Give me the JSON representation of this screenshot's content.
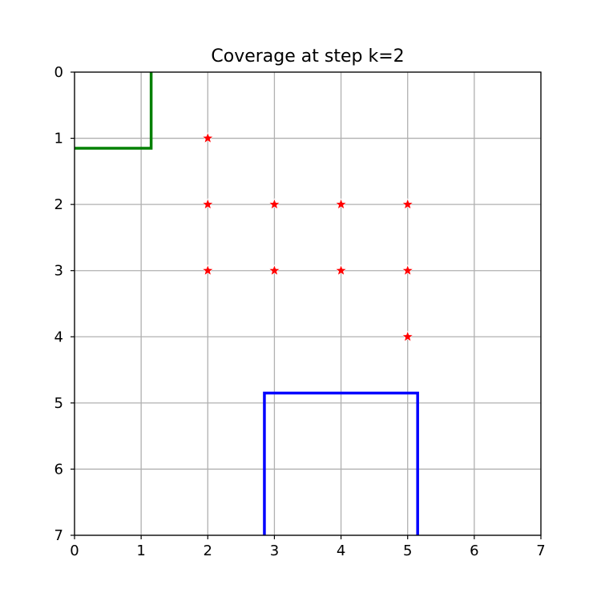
{
  "chart_data": {
    "type": "scatter",
    "title": "Coverage at step k=2",
    "xlabel": "",
    "ylabel": "",
    "xlim": [
      0,
      7
    ],
    "ylim": [
      7,
      0
    ],
    "y_inverted": true,
    "grid": true,
    "x_ticks": [
      "0",
      "1",
      "2",
      "3",
      "4",
      "5",
      "6",
      "7"
    ],
    "y_ticks": [
      "0",
      "1",
      "2",
      "3",
      "4",
      "5",
      "6",
      "7"
    ],
    "points": {
      "marker": "star",
      "color": "#ff0000",
      "values": [
        {
          "x": 2,
          "y": 1
        },
        {
          "x": 2,
          "y": 2
        },
        {
          "x": 3,
          "y": 2
        },
        {
          "x": 4,
          "y": 2
        },
        {
          "x": 5,
          "y": 2
        },
        {
          "x": 2,
          "y": 3
        },
        {
          "x": 3,
          "y": 3
        },
        {
          "x": 4,
          "y": 3
        },
        {
          "x": 5,
          "y": 3
        },
        {
          "x": 5,
          "y": 4
        }
      ]
    },
    "regions": [
      {
        "color": "#008000",
        "path": [
          {
            "x": 0,
            "y": 1.15
          },
          {
            "x": 1.15,
            "y": 1.15
          },
          {
            "x": 1.15,
            "y": 0
          }
        ]
      },
      {
        "color": "#0000ff",
        "path": [
          {
            "x": 2.85,
            "y": 7
          },
          {
            "x": 2.85,
            "y": 4.85
          },
          {
            "x": 5.15,
            "y": 4.85
          },
          {
            "x": 5.15,
            "y": 7
          }
        ]
      }
    ]
  }
}
